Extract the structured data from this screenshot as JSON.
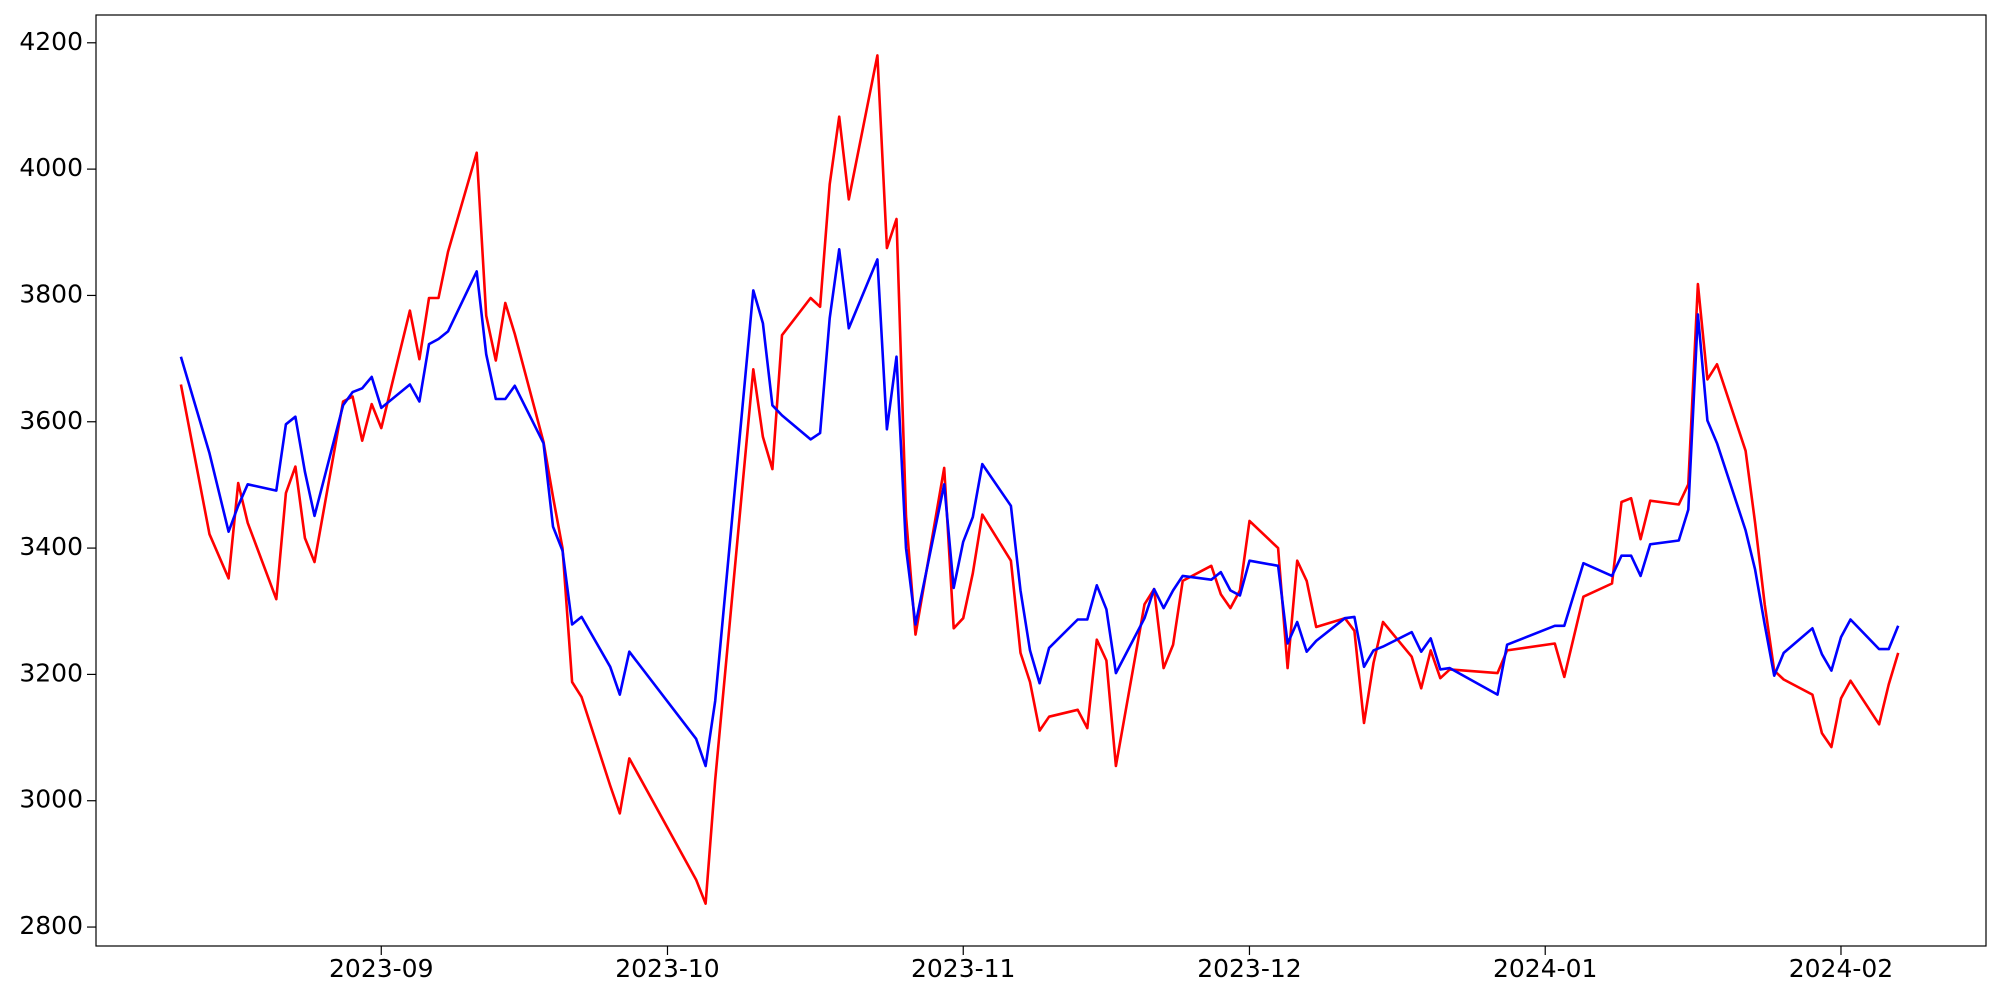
{
  "chart_data": {
    "type": "line",
    "x": [
      10,
      13,
      15,
      16,
      17,
      20,
      21,
      22,
      23,
      24,
      27,
      28,
      29,
      30,
      31,
      34,
      35,
      36,
      37,
      38,
      41,
      42,
      43,
      44,
      45,
      48,
      49,
      50,
      51,
      52,
      55,
      56,
      57,
      64,
      65,
      66,
      70,
      71,
      72,
      73,
      76,
      77,
      78,
      79,
      80,
      83,
      84,
      85,
      86,
      87,
      90,
      91,
      92,
      93,
      94,
      97,
      98,
      99,
      100,
      101,
      104,
      105,
      106,
      107,
      108,
      111,
      112,
      113,
      114,
      115,
      118,
      119,
      120,
      121,
      122,
      125,
      126,
      127,
      128,
      129,
      132,
      133,
      134,
      135,
      136,
      139,
      140,
      141,
      142,
      143,
      148,
      149,
      154,
      155,
      157,
      160,
      161,
      162,
      163,
      164,
      167,
      168,
      169,
      170,
      171,
      174,
      175,
      176,
      177,
      178,
      181,
      182,
      183,
      184,
      185,
      188,
      189,
      190
    ],
    "series": [
      {
        "color": "red",
        "values": [
          3659,
          3422,
          3352,
          3503,
          3440,
          3319,
          3487,
          3529,
          3416,
          3378,
          3632,
          3640,
          3570,
          3628,
          3590,
          3776,
          3699,
          3796,
          3796,
          3869,
          4026,
          3768,
          3697,
          3788,
          3739,
          3568,
          3481,
          3400,
          3188,
          3164,
          3024,
          2980,
          3067,
          2875,
          2837,
          3033,
          3683,
          3576,
          3525,
          3737,
          3796,
          3782,
          3976,
          4083,
          3952,
          4180,
          3875,
          3921,
          3451,
          3263,
          3527,
          3273,
          3289,
          3360,
          3453,
          3380,
          3234,
          3188,
          3111,
          3133,
          3144,
          3115,
          3255,
          3222,
          3055,
          3311,
          3335,
          3210,
          3247,
          3348,
          3372,
          3327,
          3305,
          3333,
          3443,
          3400,
          3210,
          3380,
          3348,
          3275,
          3289,
          3269,
          3123,
          3218,
          3283,
          3228,
          3178,
          3238,
          3194,
          3208,
          3202,
          3238,
          3249,
          3196,
          3323,
          3344,
          3473,
          3479,
          3414,
          3475,
          3469,
          3501,
          3818,
          3667,
          3691,
          3554,
          3440,
          3311,
          3206,
          3192,
          3168,
          3107,
          3085,
          3162,
          3190,
          3121,
          3184,
          3234
        ]
      },
      {
        "color": "blue",
        "values": [
          3703,
          3550,
          3426,
          3467,
          3501,
          3491,
          3596,
          3608,
          3521,
          3451,
          3626,
          3647,
          3653,
          3671,
          3622,
          3659,
          3632,
          3723,
          3731,
          3743,
          3838,
          3707,
          3636,
          3636,
          3657,
          3566,
          3434,
          3396,
          3279,
          3291,
          3212,
          3168,
          3236,
          3098,
          3055,
          3158,
          3808,
          3756,
          3626,
          3610,
          3572,
          3582,
          3764,
          3873,
          3748,
          3857,
          3588,
          3703,
          3400,
          3279,
          3501,
          3337,
          3410,
          3449,
          3533,
          3467,
          3333,
          3238,
          3186,
          3242,
          3287,
          3287,
          3341,
          3303,
          3202,
          3289,
          3335,
          3305,
          3333,
          3356,
          3350,
          3362,
          3333,
          3325,
          3380,
          3372,
          3249,
          3283,
          3236,
          3253,
          3289,
          3291,
          3212,
          3238,
          3244,
          3267,
          3236,
          3257,
          3208,
          3210,
          3168,
          3247,
          3277,
          3277,
          3376,
          3356,
          3388,
          3388,
          3356,
          3406,
          3412,
          3461,
          3770,
          3602,
          3566,
          3428,
          3366,
          3279,
          3198,
          3234,
          3273,
          3232,
          3206,
          3259,
          3287,
          3240,
          3240,
          3277
        ]
      }
    ],
    "xlim": [
      1.1,
      199.2
    ],
    "xticks": [
      {
        "value": 31,
        "label": "2023-09"
      },
      {
        "value": 61,
        "label": "2023-10"
      },
      {
        "value": 92,
        "label": "2023-11"
      },
      {
        "value": 122,
        "label": "2023-12"
      },
      {
        "value": 153,
        "label": "2024-01"
      },
      {
        "value": 184,
        "label": "2024-02"
      }
    ],
    "ylim": [
      2770,
      4244
    ],
    "yticks": [
      2800,
      3000,
      3200,
      3400,
      3600,
      3800,
      4000,
      4200
    ],
    "grid": false
  }
}
